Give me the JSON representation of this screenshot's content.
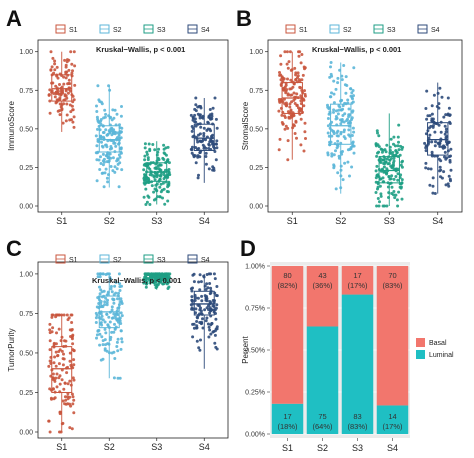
{
  "figure": {
    "colors": {
      "S1": "#C9553D",
      "S2": "#5BB6D8",
      "S3": "#1E9E84",
      "S4": "#2C4A7A",
      "Basal": "#F2766D",
      "Luminal": "#1FBFC3"
    },
    "legend_keys": [
      "S1",
      "S2",
      "S3",
      "S4"
    ]
  },
  "chart_data": [
    {
      "panel": "A",
      "type": "box",
      "ylabel": "ImmunoScore",
      "categories": [
        "S1",
        "S2",
        "S3",
        "S4"
      ],
      "yticks": [
        "0.00",
        "0.25",
        "0.50",
        "0.75",
        "1.00"
      ],
      "ylim": [
        0,
        1.05
      ],
      "annotation": "Kruskal−Wallis, p < 0.001",
      "series": [
        {
          "name": "S1",
          "q1": 0.68,
          "median": 0.76,
          "q3": 0.85,
          "whisker_low": 0.48,
          "whisker_high": 1.0,
          "n_points": 120
        },
        {
          "name": "S2",
          "q1": 0.35,
          "median": 0.43,
          "q3": 0.52,
          "whisker_low": 0.12,
          "whisker_high": 0.78,
          "n_points": 160
        },
        {
          "name": "S3",
          "q1": 0.16,
          "median": 0.22,
          "q3": 0.28,
          "whisker_low": 0.01,
          "whisker_high": 0.42,
          "n_points": 160
        },
        {
          "name": "S4",
          "q1": 0.36,
          "median": 0.44,
          "q3": 0.53,
          "whisker_low": 0.15,
          "whisker_high": 0.7,
          "n_points": 120
        }
      ]
    },
    {
      "panel": "B",
      "type": "box",
      "ylabel": "StromalScore",
      "categories": [
        "S1",
        "S2",
        "S3",
        "S4"
      ],
      "yticks": [
        "0.00",
        "0.25",
        "0.50",
        "0.75",
        "1.00"
      ],
      "ylim": [
        0,
        1.05
      ],
      "annotation": "Kruskal−Wallis, p < 0.001",
      "series": [
        {
          "name": "S1",
          "q1": 0.6,
          "median": 0.7,
          "q3": 0.8,
          "whisker_low": 0.3,
          "whisker_high": 1.0,
          "n_points": 160
        },
        {
          "name": "S2",
          "q1": 0.4,
          "median": 0.52,
          "q3": 0.66,
          "whisker_low": 0.08,
          "whisker_high": 0.93,
          "n_points": 160
        },
        {
          "name": "S3",
          "q1": 0.15,
          "median": 0.23,
          "q3": 0.32,
          "whisker_low": 0.0,
          "whisker_high": 0.6,
          "n_points": 160
        },
        {
          "name": "S4",
          "q1": 0.33,
          "median": 0.43,
          "q3": 0.54,
          "whisker_low": 0.08,
          "whisker_high": 0.8,
          "n_points": 120
        }
      ]
    },
    {
      "panel": "C",
      "type": "box",
      "ylabel": "TumorPurity",
      "categories": [
        "S1",
        "S2",
        "S3",
        "S4"
      ],
      "yticks": [
        "0.00",
        "0.25",
        "0.50",
        "0.75",
        "1.00"
      ],
      "ylim": [
        0,
        1.05
      ],
      "annotation": "Kruskal−Wallis, p < 0.001",
      "series": [
        {
          "name": "S1",
          "q1": 0.25,
          "median": 0.4,
          "q3": 0.54,
          "whisker_low": 0.0,
          "whisker_high": 0.74,
          "n_points": 140
        },
        {
          "name": "S2",
          "q1": 0.66,
          "median": 0.76,
          "q3": 0.86,
          "whisker_low": 0.34,
          "whisker_high": 1.0,
          "n_points": 160
        },
        {
          "name": "S3",
          "q1": 0.955,
          "median": 0.975,
          "q3": 0.99,
          "whisker_low": 0.9,
          "whisker_high": 1.0,
          "n_points": 160
        },
        {
          "name": "S4",
          "q1": 0.74,
          "median": 0.81,
          "q3": 0.89,
          "whisker_low": 0.4,
          "whisker_high": 1.0,
          "n_points": 130
        }
      ]
    },
    {
      "panel": "D",
      "type": "bar",
      "stacked": true,
      "ylabel": "Percent",
      "categories": [
        "S1",
        "S2",
        "S3",
        "S4"
      ],
      "yticks": [
        "0.00%",
        "0.25%",
        "0.50%",
        "0.75%",
        "1.00%"
      ],
      "legend": [
        "Basal",
        "Luminal"
      ],
      "series": [
        {
          "name": "Basal",
          "counts": [
            80,
            43,
            17,
            70
          ],
          "pct_labels": [
            "(82%)",
            "(36%)",
            "(17%)",
            "(83%)"
          ],
          "values": [
            0.82,
            0.36,
            0.17,
            0.83
          ]
        },
        {
          "name": "Luminal",
          "counts": [
            17,
            75,
            83,
            14
          ],
          "pct_labels": [
            "(18%)",
            "(64%)",
            "(83%)",
            "(17%)"
          ],
          "values": [
            0.18,
            0.64,
            0.83,
            0.17
          ]
        }
      ]
    }
  ]
}
